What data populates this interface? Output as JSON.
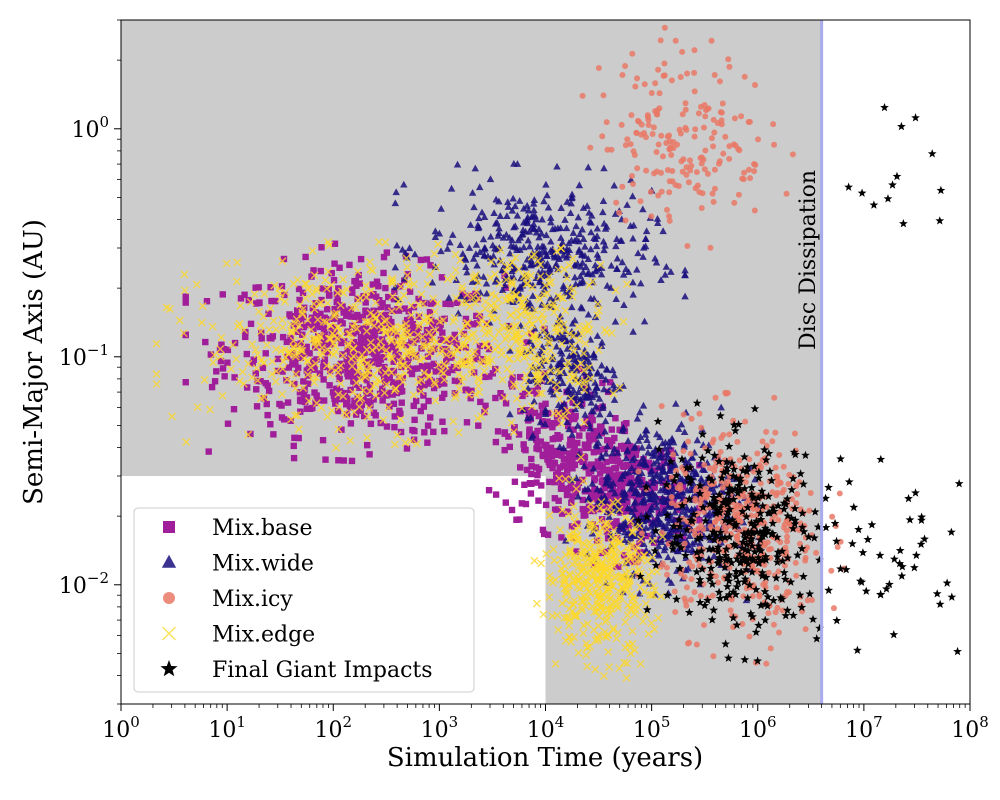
{
  "chart_data": {
    "type": "scatter",
    "xlabel": "Simulation Time (years)",
    "ylabel": "Semi-Major Axis (AU)",
    "xscale": "log",
    "yscale": "log",
    "xlim": [
      1,
      100000000
    ],
    "ylim": [
      0.003,
      3.0
    ],
    "x_ticks": [
      {
        "value": 1,
        "base": "10",
        "exp": "0"
      },
      {
        "value": 10,
        "base": "10",
        "exp": "1"
      },
      {
        "value": 100,
        "base": "10",
        "exp": "2"
      },
      {
        "value": 1000,
        "base": "10",
        "exp": "3"
      },
      {
        "value": 10000,
        "base": "10",
        "exp": "4"
      },
      {
        "value": 100000,
        "base": "10",
        "exp": "5"
      },
      {
        "value": 1000000,
        "base": "10",
        "exp": "6"
      },
      {
        "value": 10000000,
        "base": "10",
        "exp": "7"
      },
      {
        "value": 100000000,
        "base": "10",
        "exp": "8"
      }
    ],
    "y_ticks": [
      {
        "value": 0.01,
        "base": "10",
        "exp": "−2"
      },
      {
        "value": 0.1,
        "base": "10",
        "exp": "−1"
      },
      {
        "value": 1,
        "base": "10",
        "exp": "0"
      }
    ],
    "shaded_regions": [
      {
        "x_range": [
          1,
          4000000
        ],
        "y_range": [
          0.03,
          3.0
        ],
        "color": "#cccccc"
      },
      {
        "x_range": [
          10000,
          4000000
        ],
        "y_range": [
          0.003,
          0.03
        ],
        "color": "#cccccc"
      }
    ],
    "vline": {
      "x": 4000000,
      "color": "#aaaaee",
      "label": "Disc Dissipation"
    },
    "legend_position": "lower-left",
    "series": [
      {
        "name": "Mix.base",
        "marker": "square",
        "color": "#a01e9a",
        "clusters": [
          {
            "log_x": [
              1.0,
              3.6
            ],
            "log_y": [
              -1.35,
              -0.62
            ],
            "count": 700
          },
          {
            "log_x": [
              3.6,
              4.7
            ],
            "log_y": [
              -1.75,
              -1.1
            ],
            "count": 260
          },
          {
            "log_x": [
              4.3,
              5.3
            ],
            "log_y": [
              -1.85,
              -1.35
            ],
            "count": 250
          }
        ]
      },
      {
        "name": "Mix.wide",
        "marker": "triangle",
        "color": "#1a0f7e",
        "clusters": [
          {
            "log_x": [
              2.9,
              5.0
            ],
            "log_y": [
              -0.85,
              -0.25
            ],
            "count": 420
          },
          {
            "log_x": [
              3.8,
              4.7
            ],
            "log_y": [
              -1.35,
              -0.8
            ],
            "count": 200
          },
          {
            "log_x": [
              4.4,
              5.8
            ],
            "log_y": [
              -1.95,
              -1.3
            ],
            "count": 550
          }
        ]
      },
      {
        "name": "Mix.icy",
        "marker": "circle",
        "color": "#e97866",
        "clusters": [
          {
            "log_x": [
              4.5,
              6.1
            ],
            "log_y": [
              -0.4,
              0.35
            ],
            "count": 190
          },
          {
            "log_x": [
              5.1,
              6.6
            ],
            "log_y": [
              -2.2,
              -1.3
            ],
            "count": 450
          }
        ]
      },
      {
        "name": "Mix.edge",
        "marker": "x",
        "color": "#fcd82a",
        "clusters": [
          {
            "log_x": [
              0.8,
              3.9
            ],
            "log_y": [
              -1.3,
              -0.6
            ],
            "count": 550
          },
          {
            "log_x": [
              3.2,
              4.6
            ],
            "log_y": [
              -1.2,
              -0.55
            ],
            "count": 250
          },
          {
            "log_x": [
              4.0,
              5.0
            ],
            "log_y": [
              -2.3,
              -1.65
            ],
            "count": 420
          }
        ]
      },
      {
        "name": "Final Giant Impacts",
        "marker": "star",
        "color": "#000000",
        "clusters": [
          {
            "log_x": [
              5.1,
              6.6
            ],
            "log_y": [
              -2.2,
              -1.35
            ],
            "count": 330
          },
          {
            "log_x": [
              6.5,
              7.95
            ],
            "log_y": [
              -2.2,
              -1.55
            ],
            "count": 50
          },
          {
            "log_x": [
              6.7,
              7.95
            ],
            "log_y": [
              -0.45,
              0.15
            ],
            "count": 14
          }
        ]
      }
    ]
  }
}
